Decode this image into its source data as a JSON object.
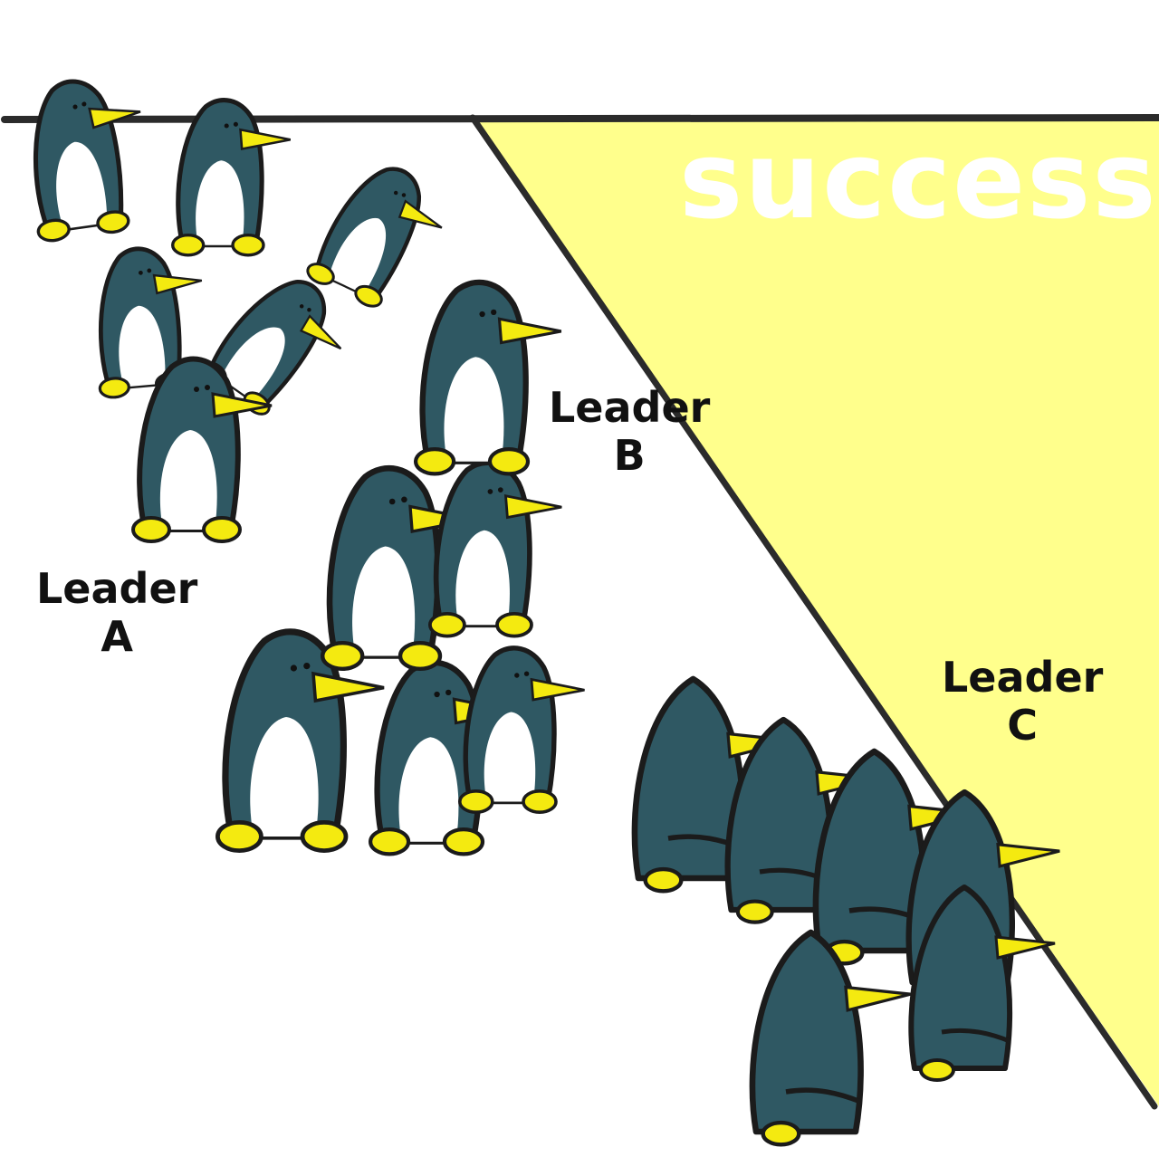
{
  "success_label": "success",
  "leaders": {
    "a": {
      "word": "Leader",
      "letter": "A"
    },
    "b": {
      "word": "Leader",
      "letter": "B"
    },
    "c": {
      "word": "Leader",
      "letter": "C"
    }
  },
  "colors": {
    "success_zone": "#ffff8c",
    "penguin_body": "#2f5863",
    "penguin_belly": "#ffffff",
    "penguin_beak": "#f4ea10",
    "outline": "#1b1b1b"
  }
}
